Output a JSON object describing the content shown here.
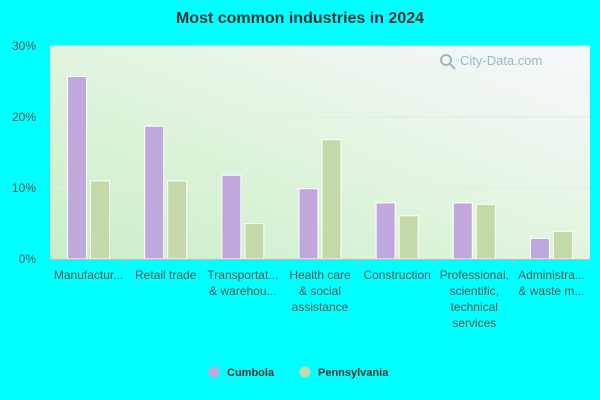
{
  "chart_data": {
    "type": "bar",
    "title": "Most common industries in 2024",
    "categories": [
      [
        "Manufactur..."
      ],
      [
        "Retail trade"
      ],
      [
        "Transportat...",
        "& warehou..."
      ],
      [
        "Health care",
        "& social",
        "assistance"
      ],
      [
        "Construction"
      ],
      [
        "Professional,",
        "scientific,",
        "technical",
        "services"
      ],
      [
        "Administra...",
        "& waste m..."
      ]
    ],
    "series": [
      {
        "name": "Cumbola",
        "color": "#c0a8dc",
        "values": [
          25.7,
          18.7,
          11.8,
          9.9,
          7.9,
          7.9,
          2.9
        ]
      },
      {
        "name": "Pennsylvania",
        "color": "#c5d8a8",
        "values": [
          11.0,
          11.0,
          5.0,
          16.8,
          6.1,
          7.7,
          3.9
        ]
      }
    ],
    "ylim": [
      0,
      30
    ],
    "yticks": [
      0,
      10,
      20,
      30
    ],
    "ytick_labels": [
      "0%",
      "10%",
      "20%",
      "30%"
    ],
    "xlabel": "",
    "ylabel": "",
    "grid": true,
    "legend_position": "bottom",
    "background_color": "#00ffff",
    "plot_background": "gradient light green to white",
    "watermark": "City-Data.com"
  }
}
